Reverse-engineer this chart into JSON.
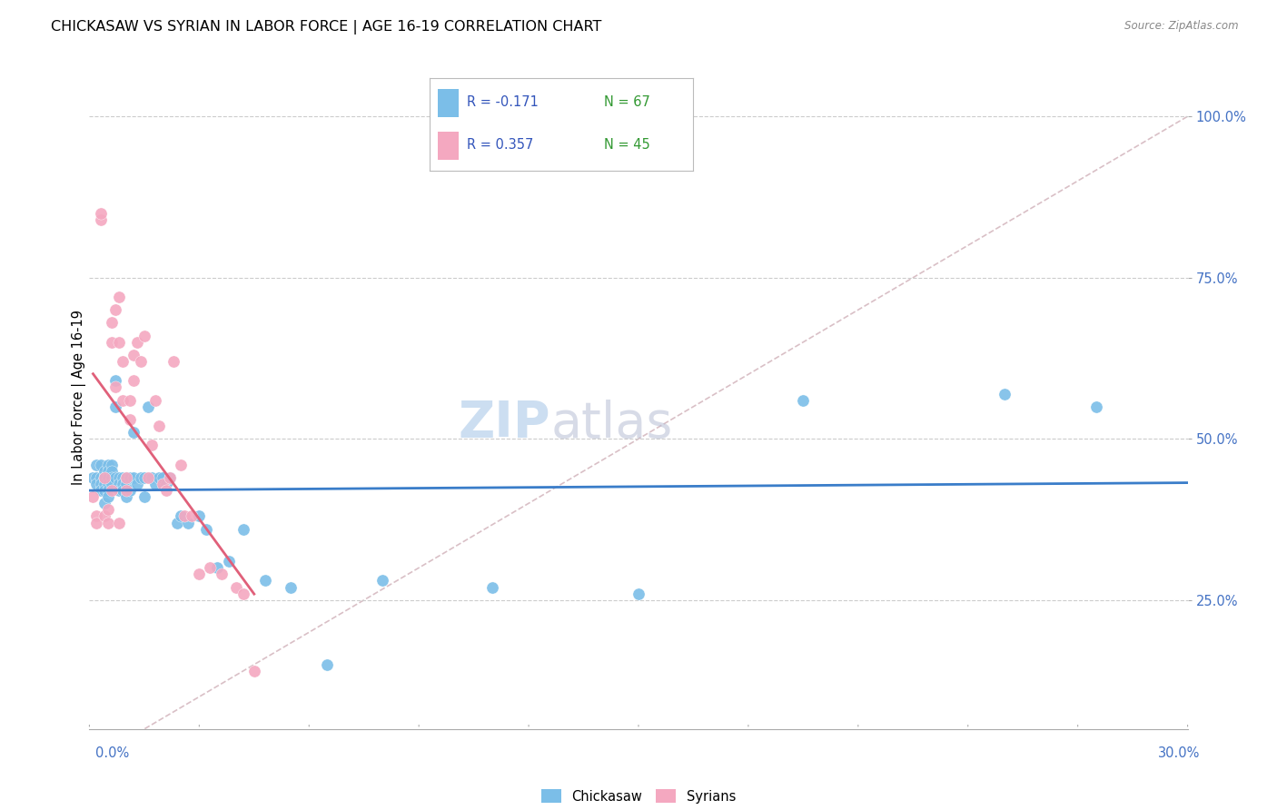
{
  "title": "CHICKASAW VS SYRIAN IN LABOR FORCE | AGE 16-19 CORRELATION CHART",
  "source": "Source: ZipAtlas.com",
  "ylabel": "In Labor Force | Age 16-19",
  "xmin": 0.0,
  "xmax": 0.3,
  "ymin": 0.05,
  "ymax": 1.08,
  "watermark_zip": "ZIP",
  "watermark_atlas": "atlas",
  "chickasaw_color": "#7bbee8",
  "syrian_color": "#f4a8c0",
  "chickasaw_line_color": "#3a7dc9",
  "syrian_line_color": "#e0607a",
  "ref_line_color": "#d0b0b8",
  "legend_R_color": "#3355bb",
  "legend_N_color": "#339933",
  "chickasaw_x": [
    0.001,
    0.002,
    0.002,
    0.002,
    0.003,
    0.003,
    0.003,
    0.003,
    0.004,
    0.004,
    0.004,
    0.004,
    0.004,
    0.005,
    0.005,
    0.005,
    0.005,
    0.005,
    0.005,
    0.006,
    0.006,
    0.006,
    0.006,
    0.007,
    0.007,
    0.007,
    0.008,
    0.008,
    0.008,
    0.009,
    0.009,
    0.009,
    0.01,
    0.01,
    0.01,
    0.011,
    0.011,
    0.012,
    0.012,
    0.013,
    0.014,
    0.015,
    0.015,
    0.016,
    0.017,
    0.018,
    0.019,
    0.02,
    0.021,
    0.022,
    0.024,
    0.025,
    0.027,
    0.03,
    0.032,
    0.035,
    0.038,
    0.042,
    0.048,
    0.055,
    0.065,
    0.08,
    0.11,
    0.15,
    0.195,
    0.25,
    0.275
  ],
  "chickasaw_y": [
    0.44,
    0.44,
    0.46,
    0.43,
    0.46,
    0.44,
    0.43,
    0.42,
    0.45,
    0.44,
    0.43,
    0.42,
    0.4,
    0.46,
    0.45,
    0.44,
    0.43,
    0.42,
    0.41,
    0.46,
    0.45,
    0.44,
    0.43,
    0.59,
    0.55,
    0.44,
    0.44,
    0.43,
    0.42,
    0.44,
    0.43,
    0.42,
    0.44,
    0.43,
    0.41,
    0.44,
    0.42,
    0.51,
    0.44,
    0.43,
    0.44,
    0.44,
    0.41,
    0.55,
    0.44,
    0.43,
    0.44,
    0.44,
    0.43,
    0.44,
    0.37,
    0.38,
    0.37,
    0.38,
    0.36,
    0.3,
    0.31,
    0.36,
    0.28,
    0.27,
    0.15,
    0.28,
    0.27,
    0.26,
    0.56,
    0.57,
    0.55
  ],
  "syrian_x": [
    0.001,
    0.002,
    0.002,
    0.003,
    0.003,
    0.004,
    0.004,
    0.005,
    0.005,
    0.006,
    0.006,
    0.006,
    0.007,
    0.007,
    0.008,
    0.008,
    0.008,
    0.009,
    0.009,
    0.01,
    0.01,
    0.011,
    0.011,
    0.012,
    0.012,
    0.013,
    0.014,
    0.015,
    0.016,
    0.017,
    0.018,
    0.019,
    0.02,
    0.021,
    0.022,
    0.023,
    0.025,
    0.026,
    0.028,
    0.03,
    0.033,
    0.036,
    0.04,
    0.042,
    0.045
  ],
  "syrian_y": [
    0.41,
    0.38,
    0.37,
    0.84,
    0.85,
    0.44,
    0.38,
    0.39,
    0.37,
    0.68,
    0.65,
    0.42,
    0.7,
    0.58,
    0.72,
    0.65,
    0.37,
    0.62,
    0.56,
    0.44,
    0.42,
    0.56,
    0.53,
    0.63,
    0.59,
    0.65,
    0.62,
    0.66,
    0.44,
    0.49,
    0.56,
    0.52,
    0.43,
    0.42,
    0.44,
    0.62,
    0.46,
    0.38,
    0.38,
    0.29,
    0.3,
    0.29,
    0.27,
    0.26,
    0.14
  ]
}
